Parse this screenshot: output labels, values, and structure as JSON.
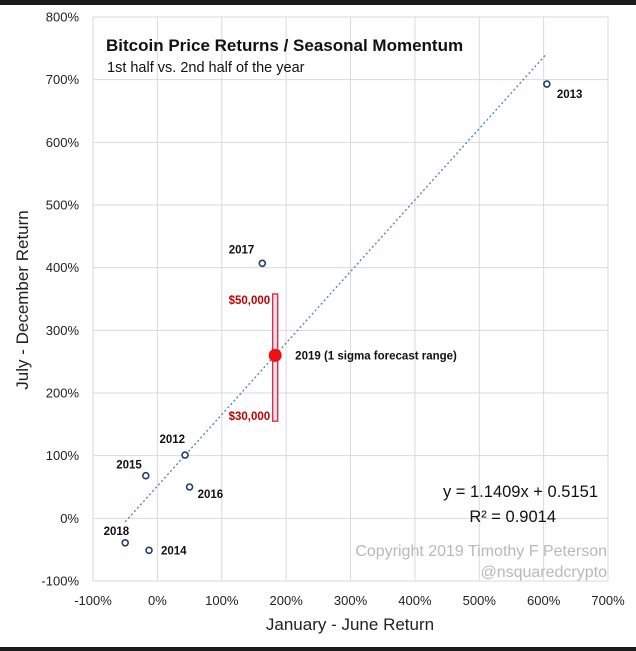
{
  "chart_data": {
    "type": "scatter",
    "title": "Bitcoin Price Returns / Seasonal Momentum",
    "subtitle": "1st half vs. 2nd half of the year",
    "xlabel": "January - June Return",
    "ylabel": "July - December Return",
    "xlim": [
      -100,
      700
    ],
    "ylim": [
      -100,
      800
    ],
    "x_ticks": [
      -100,
      0,
      100,
      200,
      300,
      400,
      500,
      600,
      700
    ],
    "y_ticks": [
      -100,
      0,
      100,
      200,
      300,
      400,
      500,
      600,
      700,
      800
    ],
    "x_tick_labels": [
      "-100%",
      "0%",
      "100%",
      "200%",
      "300%",
      "400%",
      "500%",
      "600%",
      "700%"
    ],
    "y_tick_labels": [
      "-100%",
      "0%",
      "100%",
      "200%",
      "300%",
      "400%",
      "500%",
      "600%",
      "700%",
      "800%"
    ],
    "grid": true,
    "points": [
      {
        "label": "2013",
        "x": 605,
        "y": 693
      },
      {
        "label": "2017",
        "x": 163,
        "y": 407
      },
      {
        "label": "2012",
        "x": 43,
        "y": 101
      },
      {
        "label": "2015",
        "x": -18,
        "y": 68
      },
      {
        "label": "2016",
        "x": 50,
        "y": 50
      },
      {
        "label": "2018",
        "x": -50,
        "y": -39
      },
      {
        "label": "2014",
        "x": -13,
        "y": -51
      }
    ],
    "trendline": {
      "slope": 1.1409,
      "intercept": 0.5151,
      "x_range": [
        -50,
        605
      ]
    },
    "forecast": {
      "label": "2019 (1 sigma forecast range)",
      "x": 183,
      "y": 260,
      "y_low": 155,
      "y_high": 358,
      "high_label": "$50,000",
      "low_label": "$30,000"
    },
    "equation": "y = 1.1409x + 0.5151",
    "r_squared": "R² = 0.9014",
    "copyright": "Copyright 2019 Timothy F Peterson",
    "handle": "@nsquaredcrypto",
    "colors": {
      "point_edge": "#1f3f66",
      "trendline": "#4a7ec7",
      "forecast": "#ee1111",
      "forecast_bar": "#e0284a",
      "grid": "#d9d9d9"
    }
  }
}
